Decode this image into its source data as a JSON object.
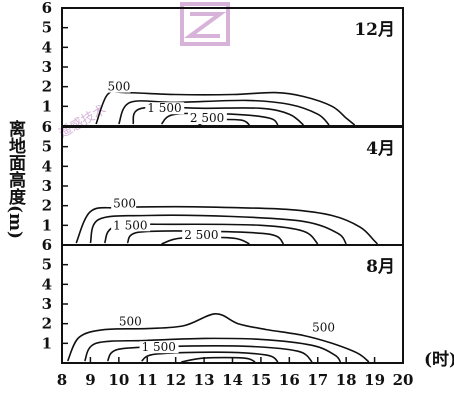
{
  "chart_data": {
    "type": "contour",
    "x_label": "(时)",
    "y_label": "离地面高度(m)",
    "x_ticks": [
      "8",
      "9",
      "10",
      "11",
      "12",
      "13",
      "14",
      "15",
      "16",
      "17",
      "18",
      "19",
      "20"
    ],
    "y_ticks": [
      "1",
      "2",
      "3",
      "4",
      "5",
      "6"
    ],
    "xlim": [
      8,
      20
    ],
    "ylim": [
      0,
      6
    ],
    "panels": [
      {
        "month": "12月",
        "contour_labels": [
          {
            "text": "500",
            "x": 9.6,
            "y": 1.8
          },
          {
            "text": "1 500",
            "x": 11.0,
            "y": 0.7
          },
          {
            "text": "2 500",
            "x": 12.5,
            "y": 0.2
          }
        ],
        "contours": [
          {
            "level": 500,
            "points": [
              [
                9.2,
                0.1
              ],
              [
                9.6,
                1.6
              ],
              [
                10.2,
                1.7
              ],
              [
                12,
                1.6
              ],
              [
                14,
                1.6
              ],
              [
                15.5,
                1.7
              ],
              [
                16.5,
                1.5
              ],
              [
                17.5,
                1.0
              ],
              [
                18,
                0.4
              ],
              [
                18.3,
                0.05
              ]
            ]
          },
          {
            "level": 1000,
            "points": [
              [
                10,
                0.1
              ],
              [
                10.4,
                1.2
              ],
              [
                12,
                1.2
              ],
              [
                14.5,
                1.3
              ],
              [
                16,
                1.1
              ],
              [
                17,
                0.6
              ],
              [
                17.4,
                0.05
              ]
            ]
          },
          {
            "level": 1500,
            "points": [
              [
                10.5,
                0.1
              ],
              [
                10.8,
                0.9
              ],
              [
                13,
                0.9
              ],
              [
                15,
                0.9
              ],
              [
                16,
                0.6
              ],
              [
                16.5,
                0.05
              ]
            ]
          },
          {
            "level": 2000,
            "points": [
              [
                11.5,
                0.1
              ],
              [
                12,
                0.6
              ],
              [
                14,
                0.6
              ],
              [
                15.3,
                0.4
              ],
              [
                15.6,
                0.05
              ]
            ]
          },
          {
            "level": 2500,
            "points": [
              [
                12.8,
                0.05
              ],
              [
                13.3,
                0.3
              ],
              [
                14.3,
                0.3
              ],
              [
                14.6,
                0.05
              ]
            ]
          }
        ]
      },
      {
        "month": "4月",
        "contour_labels": [
          {
            "text": "500",
            "x": 9.8,
            "y": 1.9
          },
          {
            "text": "1 500",
            "x": 9.8,
            "y": 0.8
          },
          {
            "text": "2 500",
            "x": 12.3,
            "y": 0.3
          }
        ],
        "contours": [
          {
            "level": 500,
            "points": [
              [
                8.5,
                0.1
              ],
              [
                9,
                1.7
              ],
              [
                10,
                1.9
              ],
              [
                12,
                1.95
              ],
              [
                14,
                1.9
              ],
              [
                16,
                1.8
              ],
              [
                17.5,
                1.5
              ],
              [
                18.5,
                0.9
              ],
              [
                19,
                0.2
              ],
              [
                19.1,
                0.05
              ]
            ]
          },
          {
            "level": 1000,
            "points": [
              [
                9,
                0.1
              ],
              [
                9.3,
                1.3
              ],
              [
                11,
                1.5
              ],
              [
                14,
                1.45
              ],
              [
                16.5,
                1.2
              ],
              [
                17.7,
                0.6
              ],
              [
                18,
                0.05
              ]
            ]
          },
          {
            "level": 1500,
            "points": [
              [
                9.5,
                0.1
              ],
              [
                9.9,
                0.95
              ],
              [
                12,
                1.05
              ],
              [
                15,
                1.0
              ],
              [
                16.5,
                0.7
              ],
              [
                17,
                0.05
              ]
            ]
          },
          {
            "level": 2000,
            "points": [
              [
                10.3,
                0.1
              ],
              [
                10.7,
                0.65
              ],
              [
                13,
                0.7
              ],
              [
                15.3,
                0.55
              ],
              [
                15.8,
                0.05
              ]
            ]
          },
          {
            "level": 2500,
            "points": [
              [
                11.5,
                0.05
              ],
              [
                12.2,
                0.35
              ],
              [
                14,
                0.35
              ],
              [
                14.6,
                0.05
              ]
            ]
          }
        ]
      },
      {
        "month": "8月",
        "contour_labels": [
          {
            "text": "500",
            "x": 10.0,
            "y": 1.9
          },
          {
            "text": "500",
            "x": 16.8,
            "y": 1.6
          },
          {
            "text": "1 500",
            "x": 10.8,
            "y": 0.6
          }
        ],
        "contours": [
          {
            "level": 500,
            "points": [
              [
                8.2,
                0.1
              ],
              [
                8.6,
                1.3
              ],
              [
                9.5,
                1.7
              ],
              [
                11,
                1.75
              ],
              [
                12.3,
                1.9
              ],
              [
                13.4,
                2.5
              ],
              [
                14.2,
                2.0
              ],
              [
                15.2,
                1.7
              ],
              [
                16.5,
                1.4
              ],
              [
                17.5,
                1.0
              ],
              [
                18.4,
                0.5
              ],
              [
                18.8,
                0.05
              ]
            ]
          },
          {
            "level": 1000,
            "points": [
              [
                8.8,
                0.1
              ],
              [
                9.2,
                1.0
              ],
              [
                11,
                1.15
              ],
              [
                13,
                1.25
              ],
              [
                15,
                1.2
              ],
              [
                16.8,
                0.9
              ],
              [
                17.6,
                0.4
              ],
              [
                17.8,
                0.05
              ]
            ]
          },
          {
            "level": 1500,
            "points": [
              [
                9.6,
                0.1
              ],
              [
                10,
                0.7
              ],
              [
                12,
                0.85
              ],
              [
                14.5,
                0.85
              ],
              [
                16.3,
                0.6
              ],
              [
                16.8,
                0.05
              ]
            ]
          },
          {
            "level": 2000,
            "points": [
              [
                10.8,
                0.1
              ],
              [
                11.3,
                0.45
              ],
              [
                13.5,
                0.55
              ],
              [
                15.2,
                0.4
              ],
              [
                15.6,
                0.05
              ]
            ]
          },
          {
            "level": 2500,
            "points": [
              [
                12.2,
                0.05
              ],
              [
                13,
                0.25
              ],
              [
                14.4,
                0.25
              ],
              [
                14.8,
                0.05
              ]
            ]
          }
        ]
      }
    ]
  },
  "watermark": {
    "text": "遥感技术"
  }
}
